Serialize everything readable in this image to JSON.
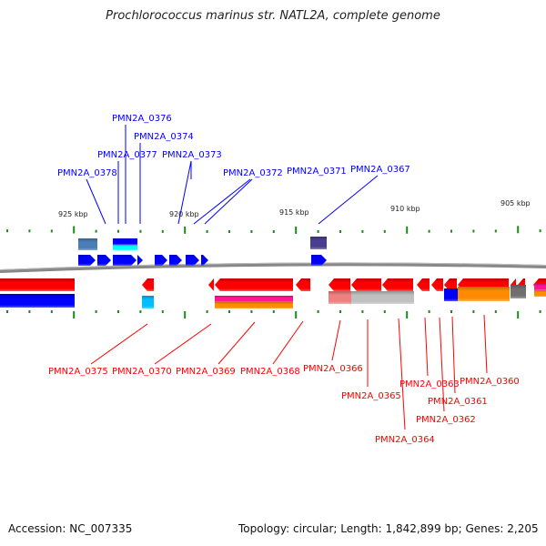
{
  "title": "Prochlorococcus marinus str. NATL2A, complete genome",
  "scale_labels": [
    "925 kbp",
    "920 kbp",
    "915 kbp",
    "910 kbp",
    "905 kbp"
  ],
  "forward_genes": [
    "PMN2A_0376",
    "PMN2A_0374",
    "PMN2A_0377",
    "PMN2A_0373",
    "PMN2A_0378",
    "PMN2A_0372",
    "PMN2A_0371",
    "PMN2A_0367"
  ],
  "reverse_genes": [
    "PMN2A_0375",
    "PMN2A_0370",
    "PMN2A_0369",
    "PMN2A_0368",
    "PMN2A_0366",
    "PMN2A_0365",
    "PMN2A_0364",
    "PMN2A_0363",
    "PMN2A_0362",
    "PMN2A_0361",
    "PMN2A_0360"
  ],
  "footer": {
    "accession": "Accession: NC_007335",
    "summary": "Topology: circular; Length: 1,842,899 bp; Genes: 2,205"
  },
  "colors": {
    "forward": "#0000ff",
    "reverse": "#ff0000",
    "backbone": "#808080",
    "ticks": "#1a8a1a"
  }
}
